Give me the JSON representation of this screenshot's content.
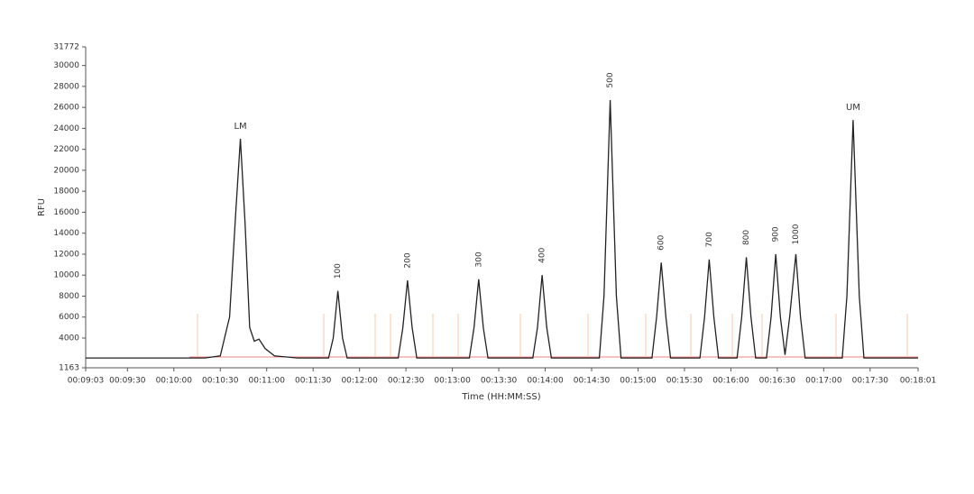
{
  "chart_data": {
    "type": "line",
    "x_label": "Time (HH:MM:SS)",
    "y_label": "RFU",
    "xlim": [
      543,
      1081
    ],
    "xticks": [
      {
        "value": 543,
        "label": "00:09:03"
      },
      {
        "value": 570,
        "label": "00:09:30"
      },
      {
        "value": 600,
        "label": "00:10:00"
      },
      {
        "value": 630,
        "label": "00:10:30"
      },
      {
        "value": 660,
        "label": "00:11:00"
      },
      {
        "value": 690,
        "label": "00:11:30"
      },
      {
        "value": 720,
        "label": "00:12:00"
      },
      {
        "value": 750,
        "label": "00:12:30"
      },
      {
        "value": 780,
        "label": "00:13:00"
      },
      {
        "value": 810,
        "label": "00:13:30"
      },
      {
        "value": 840,
        "label": "00:14:00"
      },
      {
        "value": 870,
        "label": "00:14:30"
      },
      {
        "value": 900,
        "label": "00:15:00"
      },
      {
        "value": 930,
        "label": "00:15:30"
      },
      {
        "value": 960,
        "label": "00:16:00"
      },
      {
        "value": 990,
        "label": "00:16:30"
      },
      {
        "value": 1020,
        "label": "00:17:00"
      },
      {
        "value": 1050,
        "label": "00:17:30"
      },
      {
        "value": 1081,
        "label": "00:18:01"
      }
    ],
    "ylim": [
      1163,
      31772
    ],
    "yticks": [
      1163,
      4000,
      6000,
      8000,
      10000,
      12000,
      14000,
      16000,
      18000,
      20000,
      22000,
      24000,
      26000,
      28000,
      30000,
      31772
    ],
    "series": [
      {
        "color": "#222222",
        "x": [
          543,
          620,
          630,
          636,
          640,
          643,
          646,
          649,
          652,
          655,
          659,
          665,
          680,
          700,
          703,
          706,
          709,
          712,
          745,
          748,
          751,
          754,
          757,
          791,
          794,
          797,
          800,
          803,
          832,
          835,
          838,
          841,
          844,
          875,
          878,
          882,
          886,
          889,
          909,
          912,
          915,
          918,
          921,
          940,
          943,
          946,
          949,
          952,
          964,
          967,
          970,
          973,
          976,
          983,
          986,
          989,
          992,
          995,
          998,
          1002,
          1005,
          1008,
          1032,
          1035,
          1039,
          1043,
          1046,
          1081
        ],
        "values": [
          2100,
          2100,
          2300,
          6000,
          16000,
          23000,
          15000,
          5000,
          3700,
          3900,
          3000,
          2300,
          2100,
          2100,
          4000,
          8500,
          4000,
          2100,
          2100,
          5000,
          9500,
          5000,
          2100,
          2100,
          5000,
          9600,
          5000,
          2100,
          2100,
          5000,
          10000,
          5000,
          2100,
          2100,
          8000,
          26700,
          8000,
          2100,
          2100,
          6000,
          11200,
          6000,
          2100,
          2100,
          6000,
          11500,
          6000,
          2100,
          2100,
          6000,
          11700,
          6000,
          2100,
          2100,
          6000,
          12000,
          6000,
          2400,
          6000,
          12000,
          6000,
          2100,
          2100,
          8000,
          24800,
          8000,
          2100,
          2100
        ]
      }
    ],
    "peak_labels": [
      {
        "label": "LM",
        "x": 643,
        "y": 23000,
        "color": "#d62728"
      },
      {
        "label": "100",
        "x": 706,
        "y": 8500,
        "color": "#1f3fd6"
      },
      {
        "label": "200",
        "x": 751,
        "y": 9500,
        "color": "#1f3fd6"
      },
      {
        "label": "300",
        "x": 797,
        "y": 9600,
        "color": "#1f3fd6"
      },
      {
        "label": "400",
        "x": 838,
        "y": 10000,
        "color": "#1f3fd6"
      },
      {
        "label": "500",
        "x": 882,
        "y": 26700,
        "color": "#1f3fd6"
      },
      {
        "label": "600",
        "x": 915,
        "y": 11200,
        "color": "#1f3fd6"
      },
      {
        "label": "700",
        "x": 946,
        "y": 11500,
        "color": "#1f3fd6"
      },
      {
        "label": "800",
        "x": 970,
        "y": 11700,
        "color": "#1f3fd6"
      },
      {
        "label": "900",
        "x": 989,
        "y": 12000,
        "color": "#1f3fd6"
      },
      {
        "label": "1000",
        "x": 1002,
        "y": 12000,
        "color": "#1f3fd6"
      },
      {
        "label": "UM",
        "x": 1039,
        "y": 24800,
        "color": "#d62728"
      }
    ]
  }
}
